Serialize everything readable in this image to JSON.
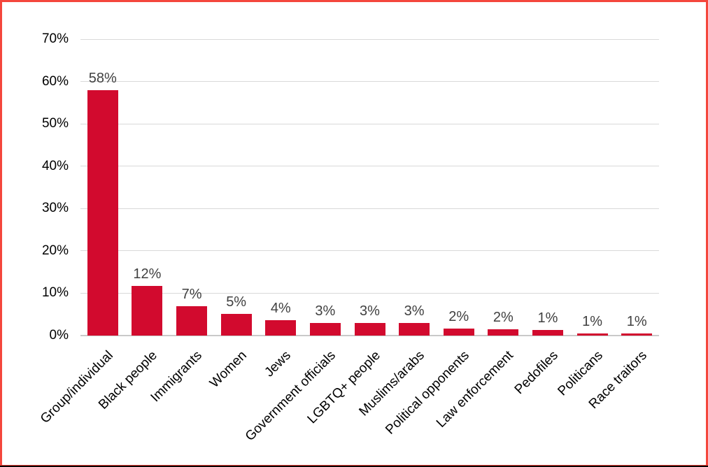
{
  "chart_data": {
    "type": "bar",
    "title": "",
    "xlabel": "",
    "ylabel": "",
    "categories": [
      "Group/individual",
      "Black people",
      "Immigrants",
      "Women",
      "Jews",
      "Government officials",
      "LGBTQ+ people",
      "Muslims/arabs",
      "Political opponents",
      "Law enforcement",
      "Pedofiles",
      "Politicans",
      "Race traitors"
    ],
    "values": [
      58,
      12,
      7,
      5,
      4,
      3,
      3,
      3,
      2,
      2,
      1,
      1,
      1
    ],
    "data_labels": [
      "58%",
      "12%",
      "7%",
      "5%",
      "4%",
      "3%",
      "3%",
      "3%",
      "2%",
      "2%",
      "1%",
      "1%",
      "1%"
    ],
    "bar_heights_pct": [
      58,
      11.8,
      6.9,
      5.1,
      3.6,
      2.9,
      2.9,
      2.9,
      1.7,
      1.5,
      1.3,
      0.5,
      0.5
    ],
    "ylim": [
      0,
      70
    ],
    "ytick_step": 10,
    "ytick_labels": [
      "0%",
      "10%",
      "20%",
      "30%",
      "40%",
      "50%",
      "60%",
      "70%"
    ],
    "grid": true,
    "legend": false,
    "colors": {
      "bar": "#d20a2e",
      "border": "#f4463c",
      "gridline": "#d9d9d9",
      "axis_line": "#c9c9c9",
      "data_label": "#404040",
      "axis_text": "#000000",
      "background": "#ffffff",
      "bottom_edge": "#000000"
    }
  }
}
